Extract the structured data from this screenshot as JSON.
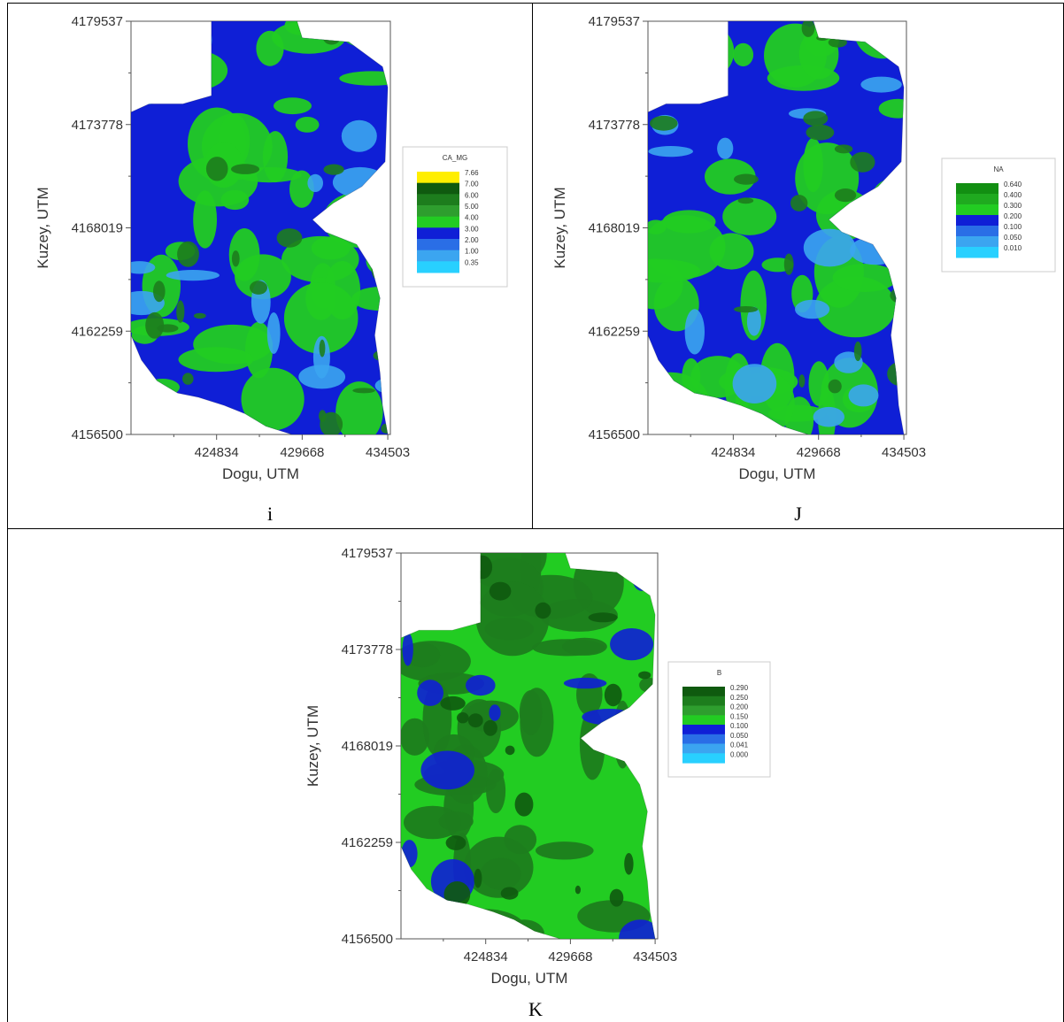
{
  "panels": [
    {
      "id": "i",
      "caption": "i",
      "xlabel": "Dogu, UTM",
      "ylabel": "Kuzey, UTM",
      "xticks": [
        "424834",
        "429668",
        "434503"
      ],
      "yticks": [
        "4179537",
        "4173778",
        "4168019",
        "4162259",
        "4156500"
      ],
      "legend": {
        "title": "CA_MG",
        "levels": [
          "7.66",
          "7.00",
          "6.00",
          "5.00",
          "4.00",
          "3.00",
          "2.00",
          "1.00",
          "0.35"
        ],
        "colors": [
          "#ffee00",
          "#0f5a0f",
          "#1d7d1d",
          "#2e9e2e",
          "#22cc22",
          "#0f1fd6",
          "#2a6ee6",
          "#3ba5f0",
          "#28d0ff"
        ]
      },
      "palette": {
        "base": "#0f1fd6",
        "mid": "#22cc22",
        "dark": "#1d7d1d",
        "light": "#3ba5f0"
      }
    },
    {
      "id": "j",
      "caption": "J",
      "xlabel": "Dogu, UTM",
      "ylabel": "Kuzey, UTM",
      "xticks": [
        "424834",
        "429668",
        "434503"
      ],
      "yticks": [
        "4179537",
        "4173778",
        "4168019",
        "4162259",
        "4156500"
      ],
      "legend": {
        "title": "NA",
        "levels": [
          "0.640",
          "0.400",
          "0.300",
          "0.200",
          "0.100",
          "0.050",
          "0.010"
        ],
        "colors": [
          "#128f12",
          "#1faa1f",
          "#22cc22",
          "#0f1fd6",
          "#2a6ee6",
          "#3ba5f0",
          "#28d0ff"
        ]
      },
      "palette": {
        "base": "#0f1fd6",
        "mid": "#22cc22",
        "dark": "#1d7d1d",
        "light": "#3ba5f0"
      }
    },
    {
      "id": "k",
      "caption": "K",
      "xlabel": "Dogu, UTM",
      "ylabel": "Kuzey, UTM",
      "xticks": [
        "424834",
        "429668",
        "434503"
      ],
      "yticks": [
        "4179537",
        "4173778",
        "4168019",
        "4162259",
        "4156500"
      ],
      "legend": {
        "title": "B",
        "levels": [
          "0.290",
          "0.250",
          "0.200",
          "0.150",
          "0.100",
          "0.050",
          "0.041",
          "0.000"
        ],
        "colors": [
          "#0f5a0f",
          "#1d7d1d",
          "#2e9e2e",
          "#22cc22",
          "#0f1fd6",
          "#2a6ee6",
          "#3ba5f0",
          "#28d0ff"
        ]
      },
      "palette": {
        "base": "#22cc22",
        "mid": "#1d7d1d",
        "dark": "#0f5a0f",
        "light": "#0f1fd6"
      }
    }
  ]
}
